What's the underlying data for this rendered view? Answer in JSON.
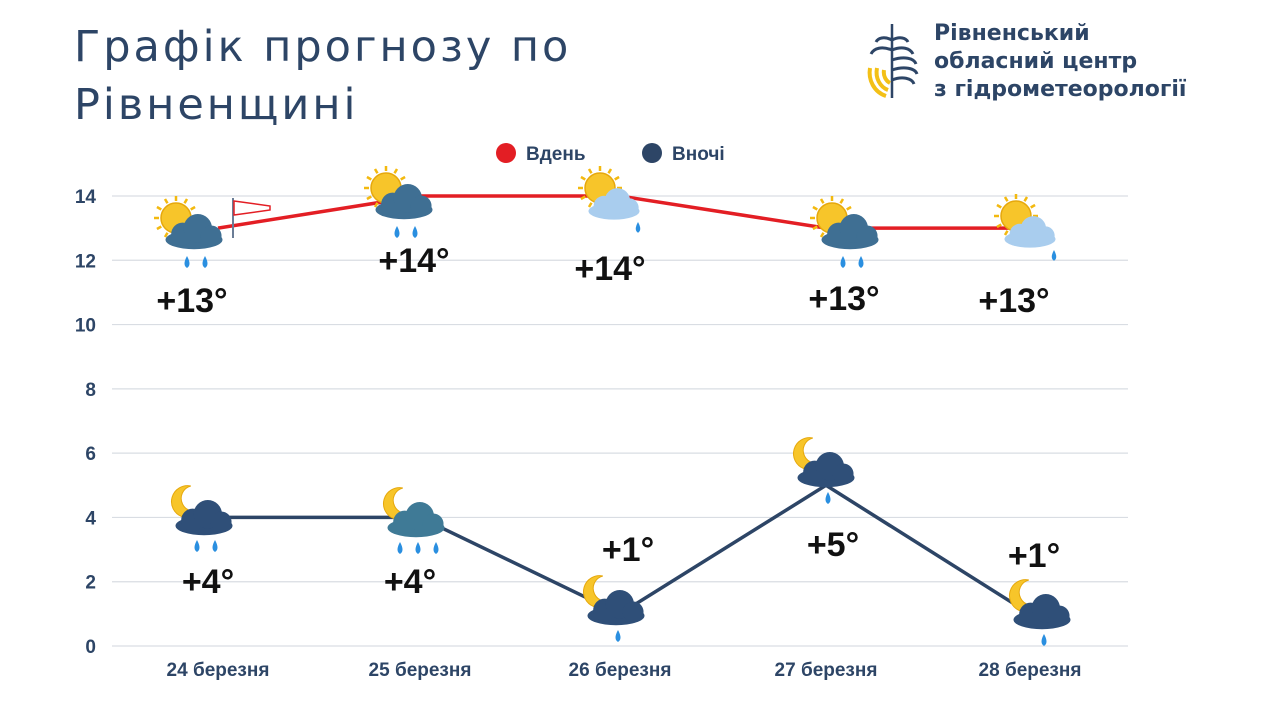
{
  "header": {
    "title_line1": "Графік прогнозу по",
    "title_line2": "Рівненщині"
  },
  "logo": {
    "line1": "Рівненський",
    "line2": "обласний центр",
    "line3": "з гідрометеорології",
    "icon": "water-drop-leaf-icon"
  },
  "colors": {
    "day": "#e31e24",
    "night": "#2d4566",
    "grid": "#d9dde3",
    "text": "#2d4566",
    "logo_yellow": "#f3c017"
  },
  "chart_data": {
    "type": "line",
    "title": "Графік прогнозу по Рівненщині",
    "categories": [
      "24 березня",
      "25 березня",
      "26 березня",
      "27 березня",
      "28 березня"
    ],
    "ylim": [
      0,
      14
    ],
    "yticks": [
      0,
      2,
      4,
      6,
      8,
      10,
      12,
      14
    ],
    "grid": true,
    "legend_position": "top-center",
    "series": [
      {
        "name": "Вдень",
        "color": "#e31e24",
        "values": [
          13,
          14,
          14,
          13,
          13
        ],
        "labels": [
          "+13°",
          "+14°",
          "+14°",
          "+13°",
          "+13°"
        ],
        "icons": [
          "sun-cloud-rain-icon",
          "sun-cloud-rain-icon",
          "sun-cloud-light-rain-icon",
          "sun-cloud-rain-icon",
          "sun-cloud-light-rain-icon"
        ]
      },
      {
        "name": "Вночі",
        "color": "#2d4566",
        "values": [
          4,
          4,
          1,
          5,
          1
        ],
        "labels": [
          "+4°",
          "+4°",
          "+1°",
          "+5°",
          "+1°"
        ],
        "icons": [
          "moon-cloud-rain-icon",
          "moon-cloud-rain-icon",
          "moon-cloud-light-rain-icon",
          "moon-cloud-rain-icon",
          "moon-cloud-rain-icon"
        ]
      }
    ]
  }
}
